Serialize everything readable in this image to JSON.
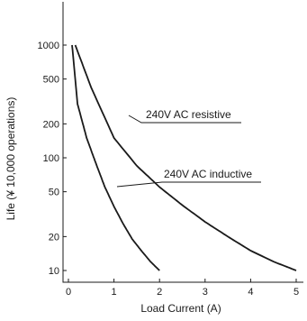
{
  "chart_data": {
    "type": "line",
    "xlabel": "Load Current (A)",
    "ylabel": "Life (¥ 10,000 operations)",
    "xlim": [
      0,
      5
    ],
    "ylim": [
      8,
      1800
    ],
    "yscale": "log",
    "grid": false,
    "x_ticks": [
      0,
      1,
      2,
      3,
      4,
      5
    ],
    "x_tick_labels": [
      "0",
      "1",
      "2",
      "3",
      "4",
      "5"
    ],
    "y_ticks": [
      10,
      20,
      50,
      100,
      200,
      500,
      1000
    ],
    "y_tick_labels": [
      "10",
      "20",
      "50",
      "100",
      "200",
      "500",
      "1000"
    ],
    "series": [
      {
        "name": "240V AC resistive",
        "x": [
          0.15,
          0.5,
          1.0,
          1.5,
          2.0,
          2.5,
          3.0,
          3.5,
          4.0,
          4.5,
          5.0
        ],
        "y": [
          1000,
          420,
          150,
          85,
          55,
          38,
          27,
          20,
          15,
          12,
          10
        ]
      },
      {
        "name": "240V AC inductive",
        "x": [
          0.08,
          0.2,
          0.4,
          0.6,
          0.8,
          1.0,
          1.2,
          1.4,
          1.6,
          1.8,
          2.0
        ],
        "y": [
          1000,
          300,
          150,
          90,
          55,
          37,
          26,
          19,
          15,
          12,
          10
        ]
      }
    ]
  }
}
